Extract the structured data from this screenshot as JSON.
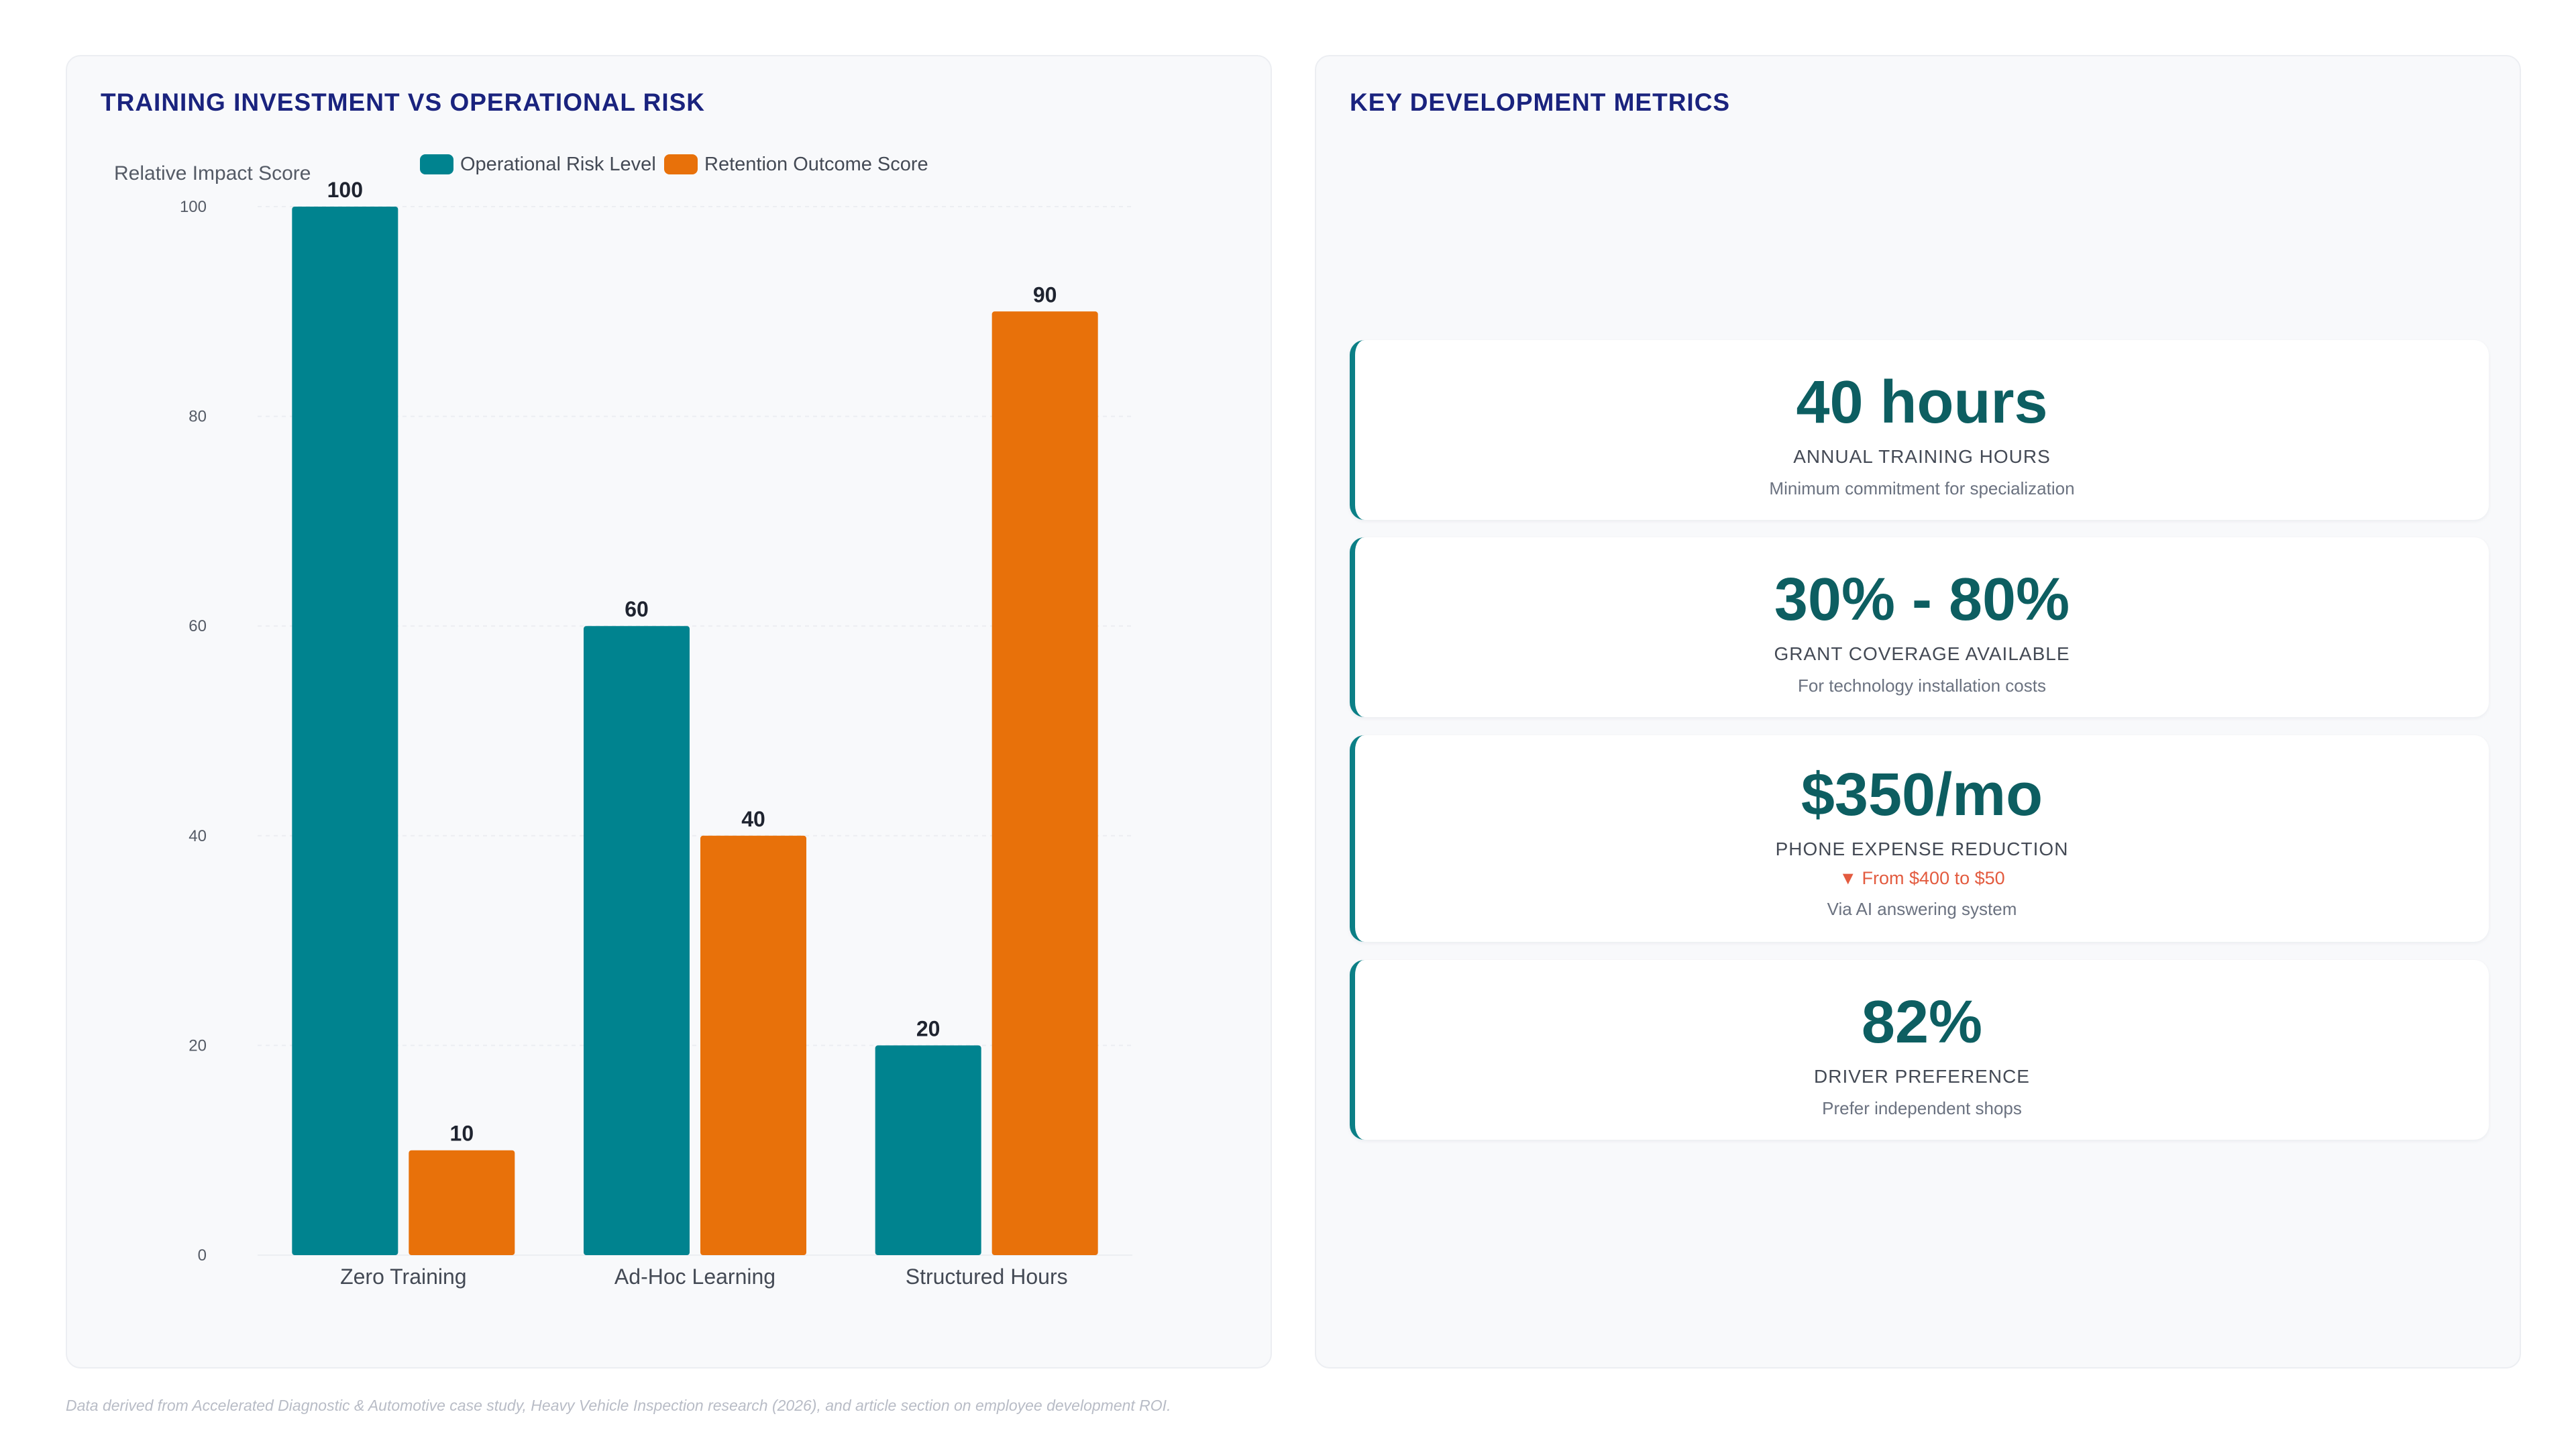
{
  "chart_panel": {
    "title": "TRAINING INVESTMENT VS OPERATIONAL RISK"
  },
  "chart_data": {
    "type": "bar",
    "title": "TRAINING INVESTMENT VS OPERATIONAL RISK",
    "ylabel": "Relative Impact Score",
    "xlabel": "",
    "categories": [
      "Zero Training",
      "Ad-Hoc Learning",
      "Structured Hours"
    ],
    "series": [
      {
        "name": "Operational Risk Level",
        "values": [
          100,
          60,
          20
        ],
        "color": "#00838f"
      },
      {
        "name": "Retention Outcome Score",
        "values": [
          10,
          40,
          90
        ],
        "color": "#e8710a"
      }
    ],
    "ylim": [
      0,
      100
    ],
    "yticks": [
      "0",
      "20",
      "40",
      "60",
      "80",
      "100"
    ],
    "grid": true,
    "legend_position": "top"
  },
  "metrics_panel": {
    "title": "KEY DEVELOPMENT METRICS",
    "cards": [
      {
        "value": "40 hours",
        "label": "ANNUAL TRAINING HOURS",
        "sub": "Minimum commitment for specialization"
      },
      {
        "value": "30% - 80%",
        "label": "GRANT COVERAGE AVAILABLE",
        "sub": "For technology installation costs"
      },
      {
        "value": "$350/mo",
        "label": "PHONE EXPENSE REDUCTION",
        "delta": "▼ From $400 to $50",
        "sub": "Via AI answering system"
      },
      {
        "value": "82%",
        "label": "DRIVER PREFERENCE",
        "sub": "Prefer independent shops"
      }
    ]
  },
  "footnote": "Data derived from Accelerated Diagnostic & Automotive case study, Heavy Vehicle Inspection research (2026), and article section on employee development ROI."
}
